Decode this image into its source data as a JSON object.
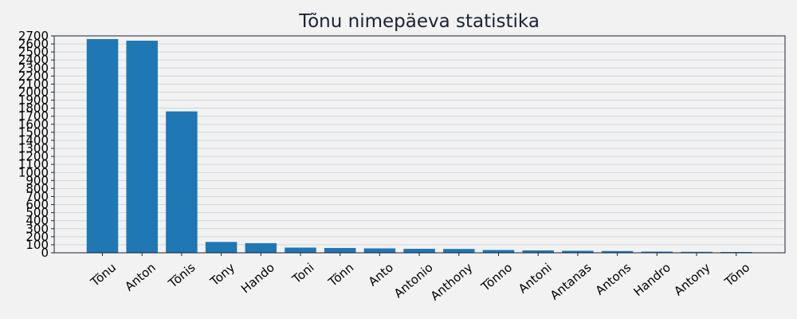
{
  "chart_data": {
    "type": "bar",
    "title": "Tõnu nimepäeva statistika",
    "xlabel": "",
    "ylabel": "",
    "categories": [
      "Tõnu",
      "Anton",
      "Tõnis",
      "Tony",
      "Hando",
      "Toni",
      "Tõnn",
      "Anto",
      "Antonio",
      "Anthony",
      "Tõnno",
      "Antoni",
      "Antanas",
      "Antons",
      "Handro",
      "Antony",
      "Tõno"
    ],
    "values": [
      2660,
      2640,
      1760,
      135,
      120,
      65,
      60,
      55,
      50,
      48,
      35,
      30,
      25,
      22,
      15,
      12,
      10
    ],
    "ylim": [
      0,
      2700
    ],
    "ytick_step": 100,
    "grid": true,
    "legend": "none",
    "colors": {
      "bar": "#1f77b4",
      "background": "#f2f2f2",
      "grid": "#cfd5de",
      "axis": "#1a2233",
      "title": "#1a2233"
    }
  }
}
